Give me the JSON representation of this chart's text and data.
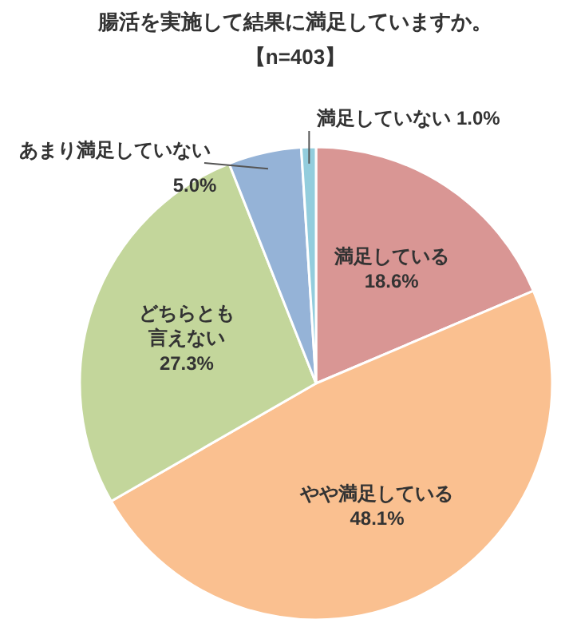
{
  "chart_data": {
    "type": "pie",
    "title": "腸活を実施して結果に満足していますか。",
    "subtitle": "【n=403】",
    "categories": [
      "満足している",
      "やや満足している",
      "どちらとも言えない",
      "あまり満足していない",
      "満足していない"
    ],
    "values": [
      18.6,
      48.1,
      27.3,
      5.0,
      1.0
    ],
    "value_labels": [
      "18.6%",
      "48.1%",
      "27.3%",
      "5.0%",
      "1.0%"
    ],
    "colors": [
      "#d99694",
      "#fac090",
      "#c3d69b",
      "#95b3d7",
      "#93cddd"
    ]
  }
}
